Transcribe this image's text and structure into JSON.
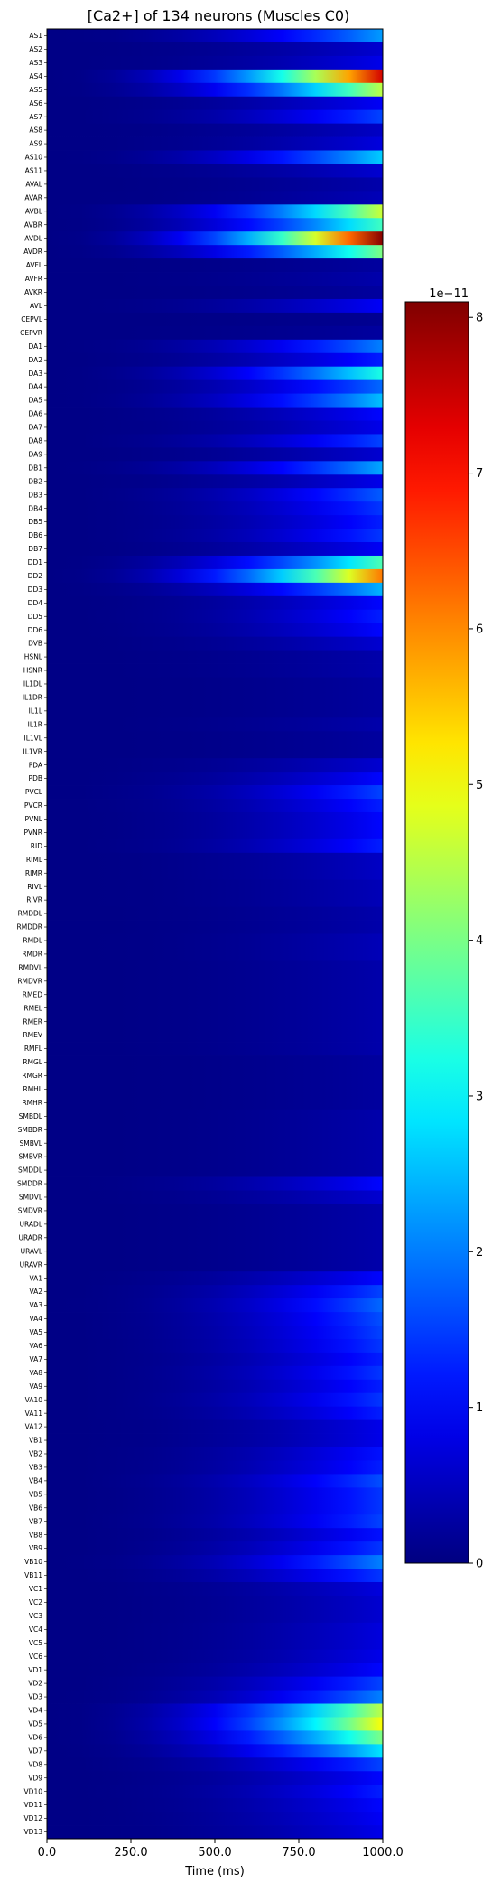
{
  "chart_data": {
    "type": "heatmap",
    "title": "[Ca2+] of 134 neurons (Muscles C0)",
    "xlabel": "Time (ms)",
    "ylabel": "",
    "xlim": [
      0,
      1000
    ],
    "x_ticks": [
      "0.0",
      "250.0",
      "500.0",
      "750.0",
      "1000.0"
    ],
    "colormap": "jet",
    "colorbar": {
      "range": [
        0,
        8.1
      ],
      "ticks": [
        "0",
        "1",
        "2",
        "3",
        "4",
        "5",
        "6",
        "7",
        "8"
      ],
      "exponent_label": "1e−11"
    },
    "neurons": [
      "AS1",
      "AS2",
      "AS3",
      "AS4",
      "AS5",
      "AS6",
      "AS7",
      "AS8",
      "AS9",
      "AS10",
      "AS11",
      "AVAL",
      "AVAR",
      "AVBL",
      "AVBR",
      "AVDL",
      "AVDR",
      "AVFL",
      "AVFR",
      "AVKR",
      "AVL",
      "CEPVL",
      "CEPVR",
      "DA1",
      "DA2",
      "DA3",
      "DA4",
      "DA5",
      "DA6",
      "DA7",
      "DA8",
      "DA9",
      "DB1",
      "DB2",
      "DB3",
      "DB4",
      "DB5",
      "DB6",
      "DB7",
      "DD1",
      "DD2",
      "DD3",
      "DD4",
      "DD5",
      "DD6",
      "DVB",
      "HSNL",
      "HSNR",
      "IL1DL",
      "IL1DR",
      "IL1L",
      "IL1R",
      "IL1VL",
      "IL1VR",
      "PDA",
      "PDB",
      "PVCL",
      "PVCR",
      "PVNL",
      "PVNR",
      "RID",
      "RIML",
      "RIMR",
      "RIVL",
      "RIVR",
      "RMDDL",
      "RMDDR",
      "RMDL",
      "RMDR",
      "RMDVL",
      "RMDVR",
      "RMED",
      "RMEL",
      "RMER",
      "RMEV",
      "RMFL",
      "RMGL",
      "RMGR",
      "RMHL",
      "RMHR",
      "SMBDL",
      "SMBDR",
      "SMBVL",
      "SMBVR",
      "SMDDL",
      "SMDDR",
      "SMDVL",
      "SMDVR",
      "URADL",
      "URADR",
      "URAVL",
      "URAVR",
      "VA1",
      "VA2",
      "VA3",
      "VA4",
      "VA5",
      "VA6",
      "VA7",
      "VA8",
      "VA9",
      "VA10",
      "VA11",
      "VA12",
      "VB1",
      "VB2",
      "VB3",
      "VB4",
      "VB5",
      "VB6",
      "VB7",
      "VB8",
      "VB9",
      "VB10",
      "VB11",
      "VC1",
      "VC2",
      "VC3",
      "VC4",
      "VC5",
      "VC6",
      "VD1",
      "VD2",
      "VD3",
      "VD4",
      "VD5",
      "VD6",
      "VD7",
      "VD8",
      "VD9",
      "VD10",
      "VD11",
      "VD12",
      "VD13"
    ],
    "peak_values": [
      2.2,
      0.6,
      0.8,
      7.4,
      4.5,
      0.9,
      1.5,
      0.5,
      0.7,
      2.6,
      0.6,
      0.3,
      0.4,
      4.6,
      3.5,
      8.0,
      4.0,
      0.2,
      0.3,
      0.2,
      0.9,
      0.1,
      0.2,
      2.0,
      1.2,
      3.2,
      1.8,
      2.5,
      1.0,
      0.8,
      1.5,
      0.6,
      2.3,
      0.8,
      1.7,
      1.4,
      1.2,
      1.4,
      0.9,
      3.6,
      6.1,
      2.4,
      1.0,
      1.2,
      1.0,
      0.6,
      0.3,
      0.3,
      0.2,
      0.2,
      0.2,
      0.3,
      0.2,
      0.2,
      0.6,
      1.0,
      1.5,
      1.2,
      1.0,
      1.0,
      1.2,
      0.5,
      0.5,
      0.4,
      0.4,
      0.3,
      0.3,
      0.4,
      0.4,
      0.3,
      0.3,
      0.3,
      0.3,
      0.3,
      0.3,
      0.3,
      0.2,
      0.2,
      0.2,
      0.2,
      0.3,
      0.3,
      0.3,
      0.3,
      0.3,
      1.0,
      0.6,
      0.3,
      0.3,
      0.3,
      0.3,
      0.3,
      1.0,
      1.5,
      1.8,
      1.6,
      1.5,
      1.4,
      1.2,
      1.4,
      1.2,
      1.4,
      1.2,
      0.8,
      0.8,
      1.1,
      1.2,
      1.6,
      1.4,
      1.4,
      1.5,
      1.1,
      1.4,
      2.0,
      1.4,
      0.7,
      0.6,
      0.6,
      0.7,
      0.7,
      0.8,
      1.0,
      1.5,
      2.0,
      4.5,
      5.0,
      4.0,
      2.8,
      1.5,
      1.0,
      1.2,
      1.0,
      0.9,
      0.8
    ]
  }
}
